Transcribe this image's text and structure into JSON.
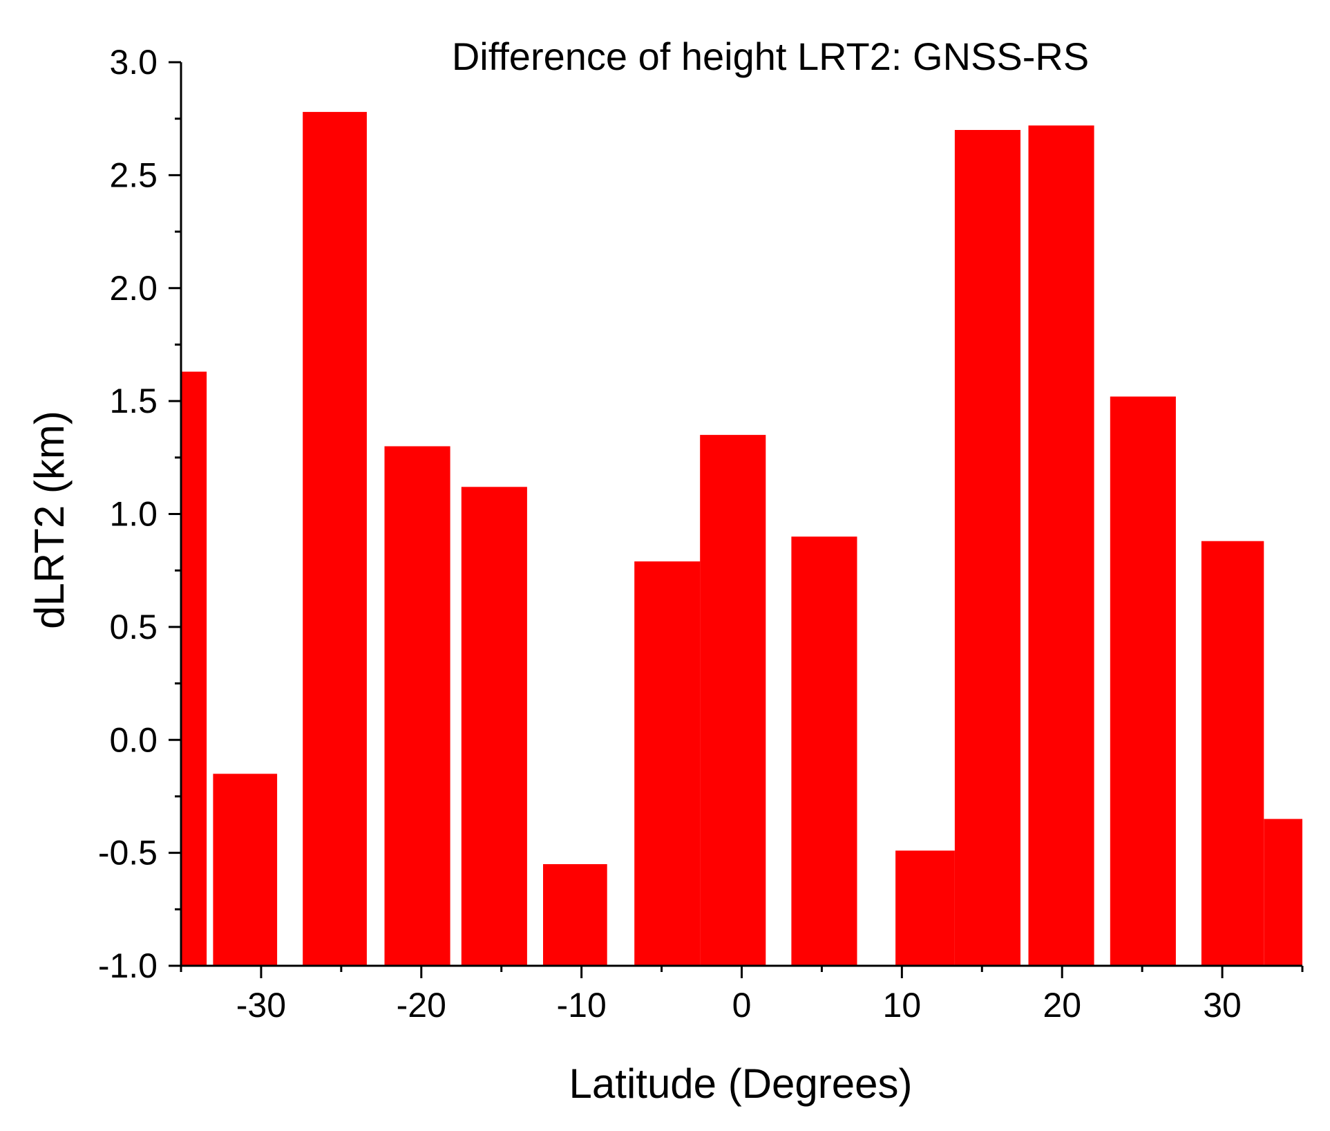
{
  "chart_data": {
    "type": "bar",
    "title": "Difference of height LRT2: GNSS-RS",
    "xlabel": "Latitude (Degrees)",
    "ylabel": "dLRT2 (km)",
    "xlim": [
      -35,
      35
    ],
    "ylim": [
      -1.0,
      3.0
    ],
    "xticks": [
      -30,
      -20,
      -10,
      0,
      10,
      20,
      30
    ],
    "xtick_labels": [
      "-30",
      "-20",
      "-10",
      "0",
      "10",
      "20",
      "30"
    ],
    "yticks": [
      -1.0,
      -0.5,
      0.0,
      0.5,
      1.0,
      1.5,
      2.0,
      2.5,
      3.0
    ],
    "ytick_labels": [
      "-1.0",
      "-0.5",
      "0.0",
      "0.5",
      "1.0",
      "1.5",
      "2.0",
      "2.5",
      "3.0"
    ],
    "bar_baseline": -1.0,
    "grid": false,
    "bar_color": "#ff0000",
    "bars": [
      {
        "x_start": -35.0,
        "x_end": -33.4,
        "value": 1.63
      },
      {
        "x_start": -33.0,
        "x_end": -29.0,
        "value": -0.15
      },
      {
        "x_start": -27.4,
        "x_end": -23.4,
        "value": 2.78
      },
      {
        "x_start": -22.3,
        "x_end": -18.2,
        "value": 1.3
      },
      {
        "x_start": -17.5,
        "x_end": -13.4,
        "value": 1.12
      },
      {
        "x_start": -12.4,
        "x_end": -8.4,
        "value": -0.55
      },
      {
        "x_start": -6.7,
        "x_end": -2.6,
        "value": 0.79
      },
      {
        "x_start": -2.6,
        "x_end": 1.5,
        "value": 1.35
      },
      {
        "x_start": 3.1,
        "x_end": 7.2,
        "value": 0.9
      },
      {
        "x_start": 9.6,
        "x_end": 13.3,
        "value": -0.49
      },
      {
        "x_start": 13.3,
        "x_end": 17.4,
        "value": 2.7
      },
      {
        "x_start": 17.9,
        "x_end": 22.0,
        "value": 2.72
      },
      {
        "x_start": 23.0,
        "x_end": 27.1,
        "value": 1.52
      },
      {
        "x_start": 28.7,
        "x_end": 32.6,
        "value": 0.88
      },
      {
        "x_start": 32.6,
        "x_end": 35.0,
        "value": -0.35
      }
    ]
  }
}
